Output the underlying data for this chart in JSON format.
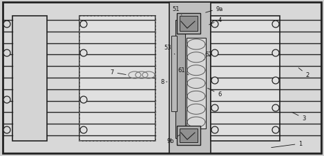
{
  "fig_width": 4.69,
  "fig_height": 2.28,
  "dpi": 100,
  "bg_color": "#d0d0d0",
  "label_fs": 6.0,
  "label_color": "#111111",
  "lc": "#222222",
  "lw_border": 1.8,
  "lw_coil": 0.9,
  "lw_thin": 0.75
}
